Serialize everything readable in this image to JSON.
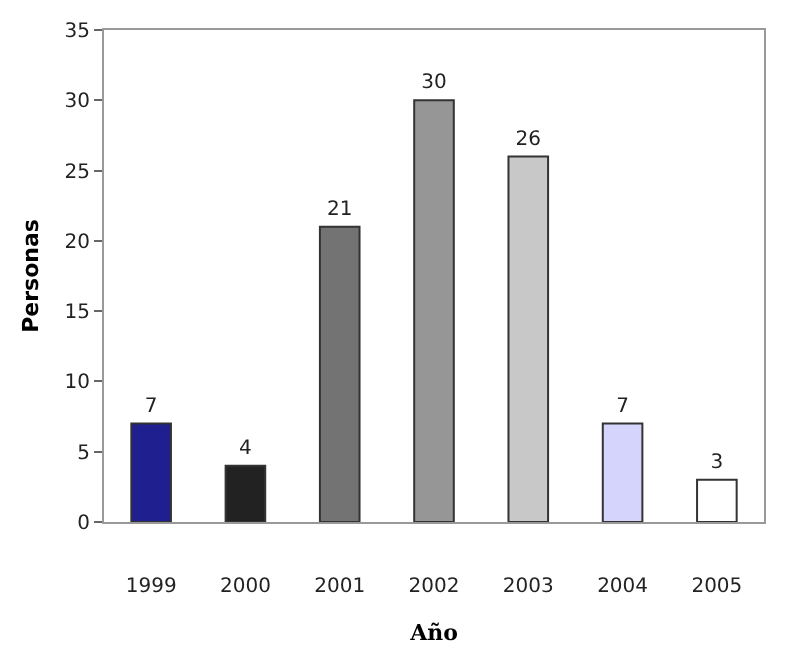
{
  "chart_data": {
    "type": "bar",
    "xlabel": "Año",
    "ylabel": "Personas",
    "categories": [
      "1999",
      "2000",
      "2001",
      "2002",
      "2003",
      "2004",
      "2005"
    ],
    "values": [
      7,
      4,
      21,
      30,
      26,
      7,
      3
    ],
    "colors": [
      "#1f1f8f",
      "#222222",
      "#737373",
      "#969696",
      "#c8c8c8",
      "#d4d4fc",
      "#ffffff"
    ],
    "ylim": [
      0,
      35
    ],
    "yticks": [
      0,
      5,
      10,
      15,
      20,
      25,
      30,
      35
    ],
    "data_labels": true
  }
}
